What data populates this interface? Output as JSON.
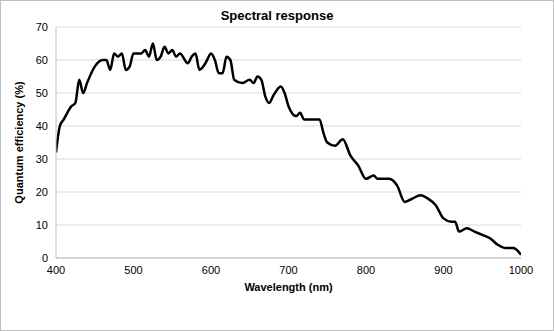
{
  "chart_data": {
    "type": "line",
    "title": "Spectral response",
    "x_label": "Wavelength (nm)",
    "y_label": "Quantum efficiency (%)",
    "x": [
      400,
      405,
      410,
      420,
      425,
      430,
      435,
      440,
      450,
      460,
      465,
      470,
      475,
      480,
      485,
      490,
      495,
      500,
      510,
      515,
      520,
      525,
      530,
      535,
      540,
      545,
      550,
      555,
      560,
      570,
      575,
      580,
      585,
      590,
      595,
      600,
      605,
      610,
      615,
      620,
      625,
      630,
      640,
      650,
      655,
      660,
      665,
      670,
      675,
      680,
      690,
      695,
      700,
      710,
      715,
      720,
      730,
      740,
      745,
      750,
      760,
      770,
      780,
      790,
      800,
      810,
      815,
      820,
      830,
      840,
      850,
      860,
      870,
      880,
      890,
      900,
      910,
      915,
      920,
      930,
      940,
      950,
      960,
      970,
      980,
      990,
      1000
    ],
    "values": [
      32,
      40,
      42,
      46,
      47,
      54,
      50,
      53,
      58,
      60,
      60,
      57,
      62,
      61,
      62,
      57,
      58,
      62,
      62,
      63,
      61,
      65,
      60,
      61,
      64,
      62,
      63,
      61,
      62,
      59,
      61,
      62,
      57,
      58,
      60,
      62,
      60,
      56,
      56,
      61,
      60,
      54,
      53,
      54,
      53,
      55,
      54,
      49,
      47,
      49,
      52,
      50,
      46,
      43,
      44,
      42,
      42,
      42,
      38,
      35,
      34,
      36,
      31,
      28,
      24,
      25,
      24,
      24,
      24,
      22,
      17,
      18,
      19,
      18,
      16,
      12,
      11,
      11,
      8,
      9,
      8,
      7,
      6,
      4,
      3,
      3,
      1
    ],
    "color": "#000000",
    "xlim": [
      400,
      1000
    ],
    "xticks": [
      400,
      500,
      600,
      700,
      800,
      900,
      1000
    ],
    "ylim": [
      0,
      70
    ],
    "yticks": [
      0,
      10,
      20,
      30,
      40,
      50,
      60,
      70
    ],
    "grid": true
  }
}
